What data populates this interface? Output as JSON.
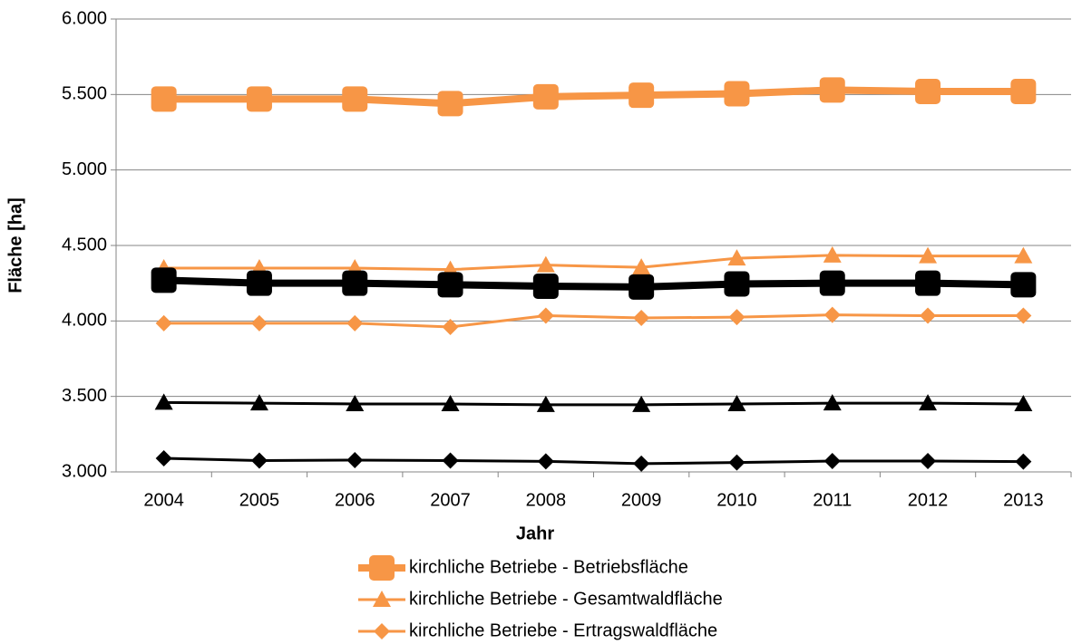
{
  "chart_data": {
    "type": "line",
    "x_label": "Jahr",
    "y_label": "Fläche [ha]",
    "categories": [
      "2004",
      "2005",
      "2006",
      "2007",
      "2008",
      "2009",
      "2010",
      "2011",
      "2012",
      "2013"
    ],
    "ylim": [
      3000,
      6000
    ],
    "yticks": [
      {
        "value": 3000,
        "label": "3.000"
      },
      {
        "value": 3500,
        "label": "3.500"
      },
      {
        "value": 4000,
        "label": "4.000"
      },
      {
        "value": 4500,
        "label": "4.500"
      },
      {
        "value": 5000,
        "label": "5.000"
      },
      {
        "value": 5500,
        "label": "5.500"
      },
      {
        "value": 6000,
        "label": "6.000"
      }
    ],
    "grid": true,
    "legend": "bottom",
    "series": [
      {
        "name": "kirchliche Betriebe - Betriebsfläche",
        "color": "#f79646",
        "marker": "square",
        "values": [
          5470,
          5470,
          5470,
          5440,
          5485,
          5495,
          5505,
          5530,
          5520,
          5520
        ]
      },
      {
        "name": "kirchliche Betriebe - Gesamtwaldfläche",
        "color": "#f79646",
        "marker": "triangle",
        "values": [
          4350,
          4350,
          4350,
          4340,
          4370,
          4355,
          4415,
          4435,
          4430,
          4430
        ]
      },
      {
        "name": "kirchliche Betriebe - Ertragswaldfläche",
        "color": "#f79646",
        "marker": "diamond",
        "values": [
          3985,
          3985,
          3985,
          3960,
          4035,
          4020,
          4025,
          4040,
          4035,
          4035
        ]
      },
      {
        "color": "#000000",
        "marker": "square",
        "values": [
          4270,
          4250,
          4250,
          4240,
          4230,
          4225,
          4245,
          4250,
          4250,
          4240
        ]
      },
      {
        "color": "#000000",
        "marker": "triangle",
        "values": [
          3460,
          3455,
          3450,
          3450,
          3445,
          3445,
          3450,
          3455,
          3455,
          3450
        ]
      },
      {
        "color": "#000000",
        "marker": "diamond",
        "values": [
          3090,
          3075,
          3078,
          3075,
          3070,
          3055,
          3062,
          3072,
          3072,
          3068
        ]
      }
    ]
  }
}
